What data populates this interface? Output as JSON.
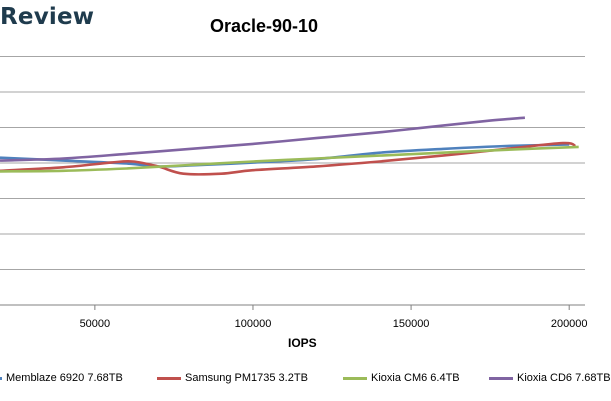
{
  "brand": "Review",
  "chart_data": {
    "type": "line",
    "title": "Oracle-90-10",
    "xlabel": "IOPS",
    "ylabel": "",
    "xlim": [
      20000,
      205000
    ],
    "ylim": [
      0,
      8.5
    ],
    "x_ticks": [
      50000,
      100000,
      150000,
      200000
    ],
    "x_tick_labels": [
      "50000",
      "100000",
      "150000",
      "200000"
    ],
    "grid": "horizontal",
    "legend_position": "bottom",
    "series": [
      {
        "name": "Memblaze 6920 7.68TB",
        "color": "#4f81bd",
        "x": [
          20000,
          40000,
          60000,
          70000,
          80000,
          100000,
          120000,
          140000,
          160000,
          180000,
          200000
        ],
        "y": [
          5.05,
          4.95,
          4.85,
          4.75,
          4.78,
          4.88,
          5.0,
          5.22,
          5.35,
          5.45,
          5.5
        ]
      },
      {
        "name": "Samsung PM1735 3.2TB",
        "color": "#c0504d",
        "x": [
          20000,
          40000,
          55000,
          62000,
          70000,
          78000,
          90000,
          100000,
          120000,
          140000,
          160000,
          180000,
          198000,
          202000
        ],
        "y": [
          4.6,
          4.72,
          4.88,
          4.92,
          4.75,
          4.5,
          4.5,
          4.62,
          4.75,
          4.92,
          5.12,
          5.35,
          5.55,
          5.45
        ]
      },
      {
        "name": "Kioxia CM6 6.4TB",
        "color": "#9bbb59",
        "x": [
          20000,
          40000,
          60000,
          80000,
          100000,
          120000,
          140000,
          160000,
          180000,
          203000
        ],
        "y": [
          4.58,
          4.6,
          4.68,
          4.8,
          4.92,
          5.02,
          5.12,
          5.22,
          5.32,
          5.42
        ]
      },
      {
        "name": "Kioxia CD6 7.68TB",
        "color": "#8064a2",
        "x": [
          20000,
          40000,
          60000,
          80000,
          100000,
          120000,
          140000,
          160000,
          175000,
          186000
        ],
        "y": [
          4.95,
          5.02,
          5.18,
          5.35,
          5.52,
          5.72,
          5.92,
          6.15,
          6.32,
          6.42
        ]
      }
    ]
  }
}
